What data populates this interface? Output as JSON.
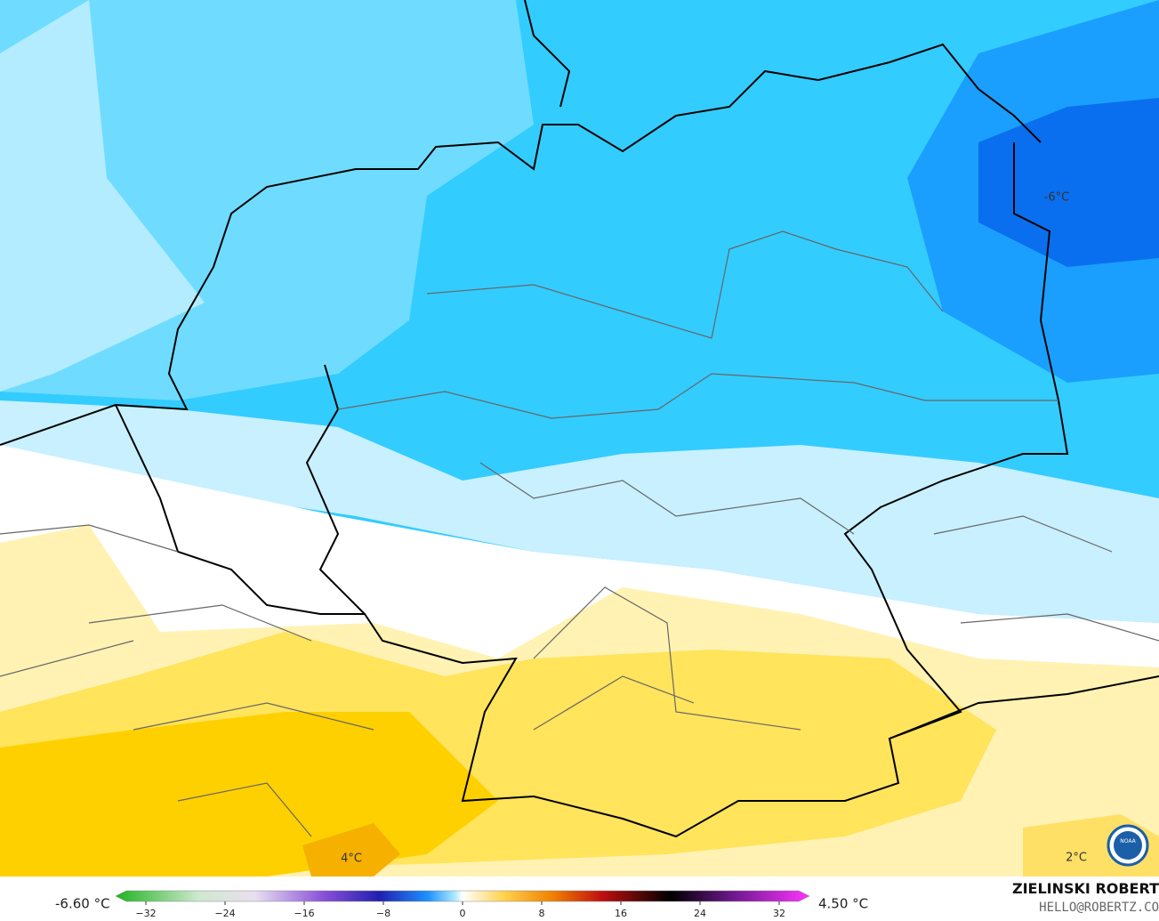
{
  "map": {
    "labels": [
      {
        "text": "-6°C"
      },
      {
        "text": "4°C"
      },
      {
        "text": "2°C"
      }
    ]
  },
  "legend": {
    "min_label": "-6.60 °C",
    "max_label": "4.50 °C",
    "ticks": [
      "−32",
      "−24",
      "−16",
      "−8",
      "0",
      "8",
      "16",
      "24",
      "32"
    ]
  },
  "credit": {
    "name": "ZIELINSKI ROBERT",
    "contact": "HELLO@ROBERTZ.CO"
  }
}
